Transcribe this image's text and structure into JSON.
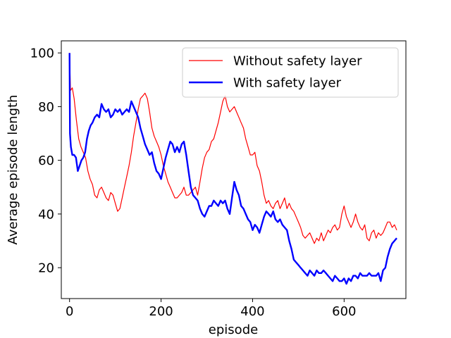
{
  "chart_data": {
    "type": "line",
    "title": "",
    "xlabel": "episode",
    "ylabel": "Average episode length",
    "xlim": [
      -18,
      735
    ],
    "ylim": [
      8.5,
      104.5
    ],
    "xticks": [
      0,
      200,
      400,
      600
    ],
    "yticks": [
      20,
      40,
      60,
      80,
      100
    ],
    "grid": false,
    "legend_position": "upper-right",
    "series": [
      {
        "name": "Without safety layer",
        "color": "#ff0000",
        "line_width": 1.2,
        "points": [
          [
            0,
            100
          ],
          [
            2,
            86
          ],
          [
            6,
            87
          ],
          [
            10,
            83
          ],
          [
            15,
            75
          ],
          [
            20,
            68
          ],
          [
            25,
            65
          ],
          [
            30,
            63
          ],
          [
            35,
            61
          ],
          [
            40,
            56
          ],
          [
            45,
            53
          ],
          [
            50,
            51
          ],
          [
            55,
            47
          ],
          [
            60,
            46
          ],
          [
            65,
            49
          ],
          [
            70,
            50
          ],
          [
            75,
            48
          ],
          [
            80,
            46
          ],
          [
            85,
            45
          ],
          [
            90,
            48
          ],
          [
            95,
            47
          ],
          [
            100,
            44
          ],
          [
            105,
            41
          ],
          [
            110,
            42
          ],
          [
            115,
            46
          ],
          [
            120,
            50
          ],
          [
            125,
            54
          ],
          [
            130,
            58
          ],
          [
            135,
            63
          ],
          [
            140,
            69
          ],
          [
            145,
            74
          ],
          [
            150,
            79
          ],
          [
            155,
            83
          ],
          [
            160,
            84
          ],
          [
            165,
            85
          ],
          [
            170,
            83
          ],
          [
            175,
            78
          ],
          [
            180,
            72
          ],
          [
            185,
            69
          ],
          [
            190,
            67
          ],
          [
            195,
            65
          ],
          [
            200,
            62
          ],
          [
            205,
            58
          ],
          [
            210,
            55
          ],
          [
            215,
            52
          ],
          [
            220,
            50
          ],
          [
            225,
            48
          ],
          [
            230,
            46
          ],
          [
            235,
            46
          ],
          [
            240,
            47
          ],
          [
            245,
            48
          ],
          [
            250,
            50
          ],
          [
            255,
            47
          ],
          [
            260,
            47
          ],
          [
            265,
            48
          ],
          [
            270,
            49
          ],
          [
            275,
            50
          ],
          [
            280,
            47
          ],
          [
            285,
            52
          ],
          [
            290,
            57
          ],
          [
            295,
            61
          ],
          [
            300,
            63
          ],
          [
            305,
            64
          ],
          [
            310,
            67
          ],
          [
            315,
            68
          ],
          [
            320,
            71
          ],
          [
            325,
            74
          ],
          [
            330,
            78
          ],
          [
            335,
            82
          ],
          [
            340,
            84
          ],
          [
            345,
            80
          ],
          [
            350,
            78
          ],
          [
            355,
            79
          ],
          [
            360,
            80
          ],
          [
            365,
            78
          ],
          [
            370,
            76
          ],
          [
            375,
            74
          ],
          [
            380,
            72
          ],
          [
            385,
            68
          ],
          [
            390,
            65
          ],
          [
            395,
            62
          ],
          [
            400,
            62
          ],
          [
            405,
            63
          ],
          [
            410,
            58
          ],
          [
            415,
            56
          ],
          [
            420,
            52
          ],
          [
            425,
            47
          ],
          [
            430,
            44
          ],
          [
            435,
            45
          ],
          [
            440,
            43
          ],
          [
            445,
            42
          ],
          [
            450,
            44
          ],
          [
            455,
            45
          ],
          [
            460,
            42
          ],
          [
            465,
            44
          ],
          [
            470,
            46
          ],
          [
            475,
            42
          ],
          [
            480,
            44
          ],
          [
            485,
            42
          ],
          [
            490,
            41
          ],
          [
            495,
            39
          ],
          [
            500,
            37
          ],
          [
            505,
            35
          ],
          [
            510,
            32
          ],
          [
            515,
            31
          ],
          [
            520,
            32
          ],
          [
            525,
            33
          ],
          [
            530,
            31
          ],
          [
            535,
            29
          ],
          [
            540,
            31
          ],
          [
            545,
            30
          ],
          [
            550,
            33
          ],
          [
            555,
            30
          ],
          [
            560,
            32
          ],
          [
            565,
            34
          ],
          [
            570,
            33
          ],
          [
            575,
            35
          ],
          [
            580,
            36
          ],
          [
            585,
            34
          ],
          [
            590,
            35
          ],
          [
            595,
            40
          ],
          [
            600,
            43
          ],
          [
            605,
            39
          ],
          [
            610,
            37
          ],
          [
            615,
            35
          ],
          [
            620,
            37
          ],
          [
            625,
            40
          ],
          [
            630,
            37
          ],
          [
            635,
            35
          ],
          [
            640,
            34
          ],
          [
            645,
            36
          ],
          [
            650,
            31
          ],
          [
            655,
            30
          ],
          [
            660,
            33
          ],
          [
            665,
            34
          ],
          [
            670,
            31
          ],
          [
            675,
            33
          ],
          [
            680,
            32
          ],
          [
            685,
            33
          ],
          [
            690,
            35
          ],
          [
            695,
            37
          ],
          [
            700,
            37
          ],
          [
            705,
            35
          ],
          [
            710,
            36
          ],
          [
            715,
            34
          ]
        ]
      },
      {
        "name": "With safety layer",
        "color": "#0000ff",
        "line_width": 2.4,
        "points": [
          [
            0,
            100
          ],
          [
            1,
            70
          ],
          [
            3,
            65
          ],
          [
            6,
            62
          ],
          [
            10,
            62
          ],
          [
            14,
            61
          ],
          [
            18,
            56
          ],
          [
            22,
            58
          ],
          [
            26,
            60
          ],
          [
            30,
            61
          ],
          [
            34,
            63
          ],
          [
            38,
            68
          ],
          [
            42,
            71
          ],
          [
            46,
            73
          ],
          [
            50,
            74
          ],
          [
            55,
            76
          ],
          [
            60,
            77
          ],
          [
            65,
            76
          ],
          [
            70,
            81
          ],
          [
            75,
            79
          ],
          [
            80,
            78
          ],
          [
            85,
            79
          ],
          [
            90,
            76
          ],
          [
            95,
            77
          ],
          [
            100,
            79
          ],
          [
            105,
            78
          ],
          [
            110,
            79
          ],
          [
            115,
            77
          ],
          [
            120,
            78
          ],
          [
            125,
            79
          ],
          [
            130,
            78
          ],
          [
            135,
            82
          ],
          [
            140,
            80
          ],
          [
            145,
            78
          ],
          [
            150,
            76
          ],
          [
            155,
            72
          ],
          [
            160,
            69
          ],
          [
            165,
            66
          ],
          [
            170,
            64
          ],
          [
            175,
            62
          ],
          [
            180,
            63
          ],
          [
            185,
            59
          ],
          [
            190,
            56
          ],
          [
            195,
            55
          ],
          [
            200,
            53
          ],
          [
            205,
            57
          ],
          [
            210,
            61
          ],
          [
            215,
            64
          ],
          [
            220,
            67
          ],
          [
            225,
            66
          ],
          [
            230,
            63
          ],
          [
            235,
            65
          ],
          [
            240,
            63
          ],
          [
            245,
            66
          ],
          [
            250,
            67
          ],
          [
            255,
            62
          ],
          [
            260,
            56
          ],
          [
            265,
            50
          ],
          [
            270,
            47
          ],
          [
            275,
            46
          ],
          [
            280,
            45
          ],
          [
            285,
            42
          ],
          [
            290,
            40
          ],
          [
            295,
            39
          ],
          [
            300,
            41
          ],
          [
            305,
            43
          ],
          [
            310,
            43
          ],
          [
            315,
            45
          ],
          [
            320,
            44
          ],
          [
            325,
            43
          ],
          [
            330,
            45
          ],
          [
            335,
            44
          ],
          [
            340,
            45
          ],
          [
            345,
            42
          ],
          [
            350,
            40
          ],
          [
            355,
            46
          ],
          [
            360,
            52
          ],
          [
            365,
            49
          ],
          [
            370,
            47
          ],
          [
            375,
            43
          ],
          [
            380,
            42
          ],
          [
            385,
            40
          ],
          [
            390,
            38
          ],
          [
            395,
            37
          ],
          [
            400,
            34
          ],
          [
            405,
            36
          ],
          [
            410,
            35
          ],
          [
            415,
            33
          ],
          [
            420,
            36
          ],
          [
            425,
            39
          ],
          [
            430,
            41
          ],
          [
            435,
            40
          ],
          [
            440,
            39
          ],
          [
            445,
            41
          ],
          [
            450,
            38
          ],
          [
            455,
            37
          ],
          [
            460,
            38
          ],
          [
            465,
            36
          ],
          [
            470,
            35
          ],
          [
            475,
            34
          ],
          [
            480,
            30
          ],
          [
            485,
            27
          ],
          [
            490,
            23
          ],
          [
            495,
            22
          ],
          [
            500,
            21
          ],
          [
            505,
            20
          ],
          [
            510,
            19
          ],
          [
            515,
            18
          ],
          [
            520,
            17
          ],
          [
            525,
            19
          ],
          [
            530,
            18
          ],
          [
            535,
            17
          ],
          [
            540,
            19
          ],
          [
            545,
            18
          ],
          [
            550,
            18
          ],
          [
            555,
            19
          ],
          [
            560,
            18
          ],
          [
            565,
            17
          ],
          [
            570,
            16
          ],
          [
            575,
            15
          ],
          [
            580,
            17
          ],
          [
            585,
            16
          ],
          [
            590,
            15
          ],
          [
            595,
            15
          ],
          [
            600,
            16
          ],
          [
            605,
            14
          ],
          [
            610,
            16
          ],
          [
            615,
            15
          ],
          [
            620,
            17
          ],
          [
            625,
            17
          ],
          [
            630,
            16
          ],
          [
            635,
            18
          ],
          [
            640,
            17
          ],
          [
            645,
            17
          ],
          [
            650,
            17
          ],
          [
            655,
            18
          ],
          [
            660,
            17
          ],
          [
            665,
            17
          ],
          [
            670,
            17
          ],
          [
            675,
            18
          ],
          [
            680,
            15
          ],
          [
            685,
            19
          ],
          [
            690,
            20
          ],
          [
            695,
            24
          ],
          [
            700,
            27
          ],
          [
            705,
            29
          ],
          [
            710,
            30
          ],
          [
            715,
            31
          ]
        ]
      }
    ]
  }
}
